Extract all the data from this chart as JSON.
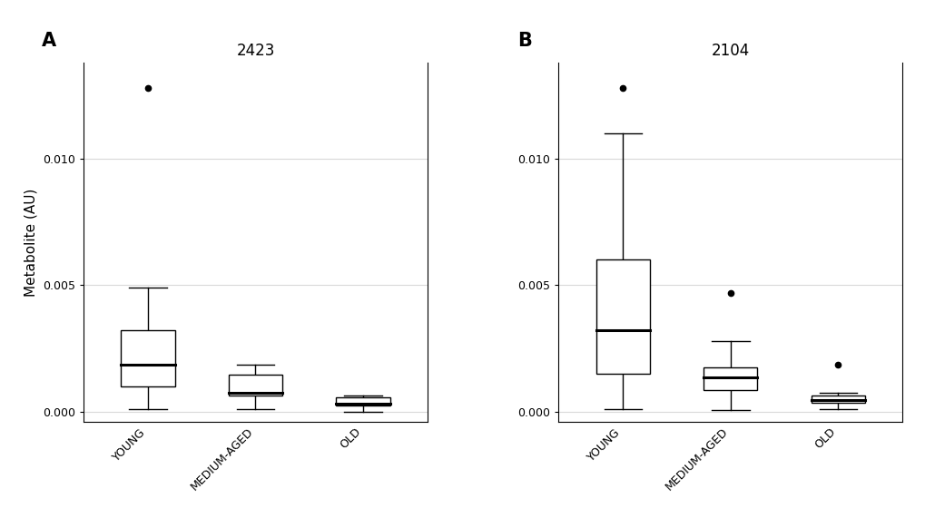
{
  "panel_A": {
    "title": "2423",
    "groups": [
      "YOUNG",
      "MEDIUM-AGED",
      "OLD"
    ],
    "boxes": [
      {
        "q1": 0.001,
        "median": 0.00185,
        "q3": 0.0032,
        "whisker_low": 0.0001,
        "whisker_high": 0.0049,
        "outliers": [
          0.0128
        ]
      },
      {
        "q1": 0.00065,
        "median": 0.00075,
        "q3": 0.00145,
        "whisker_low": 0.0001,
        "whisker_high": 0.00185,
        "outliers": []
      },
      {
        "q1": 0.00025,
        "median": 0.0003,
        "q3": 0.00055,
        "whisker_low": 0.0,
        "whisker_high": 0.00065,
        "outliers": []
      }
    ],
    "ylim": [
      -0.0004,
      0.0138
    ],
    "yticks": [
      0.0,
      0.005,
      0.01
    ],
    "ylabel": "Metabolite (AU)"
  },
  "panel_B": {
    "title": "2104",
    "groups": [
      "YOUNG",
      "MEDIUM-AGED",
      "OLD"
    ],
    "boxes": [
      {
        "q1": 0.0015,
        "median": 0.0032,
        "q3": 0.006,
        "whisker_low": 0.0001,
        "whisker_high": 0.011,
        "outliers": [
          0.0128
        ]
      },
      {
        "q1": 0.00085,
        "median": 0.00135,
        "q3": 0.00175,
        "whisker_low": 5e-05,
        "whisker_high": 0.0028,
        "outliers": [
          0.0047
        ]
      },
      {
        "q1": 0.00035,
        "median": 0.00045,
        "q3": 0.00065,
        "whisker_low": 0.0001,
        "whisker_high": 0.00075,
        "outliers": [
          0.00185
        ]
      }
    ],
    "ylim": [
      -0.0004,
      0.0138
    ],
    "yticks": [
      0.0,
      0.005,
      0.01
    ],
    "ylabel": ""
  },
  "panel_label_fontsize": 15,
  "title_fontsize": 12,
  "tick_fontsize": 9,
  "ylabel_fontsize": 11,
  "box_color": "white",
  "box_edge_color": "black",
  "median_color": "black",
  "whisker_color": "black",
  "outlier_color": "black",
  "background_color": "white",
  "plot_bg_color": "white",
  "grid_color": "#d9d9d9",
  "title_bg_color": "#d3d3d3",
  "box_width": 0.5,
  "linewidth": 1.0,
  "median_linewidth": 2.2
}
